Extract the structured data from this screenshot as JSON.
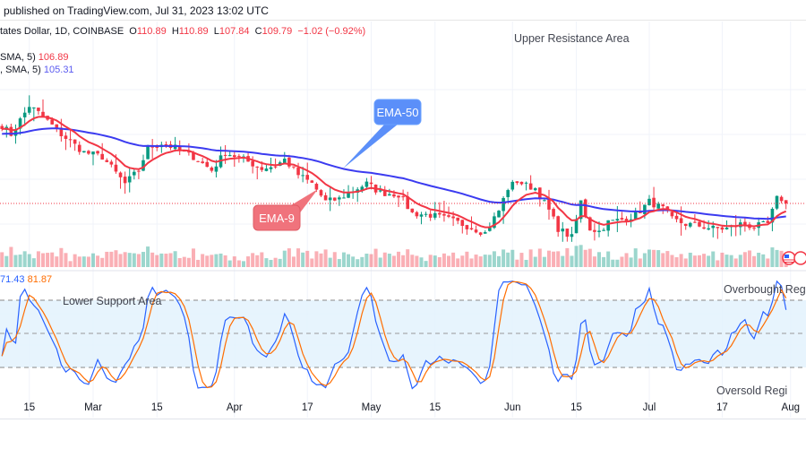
{
  "header": {
    "published": "published on TradingView.com, Jul 31, 2023 13:02 UTC"
  },
  "legend": {
    "symbol": "tates Dollar, 1D, COINBASE",
    "open_label": "O",
    "open": "110.89",
    "high_label": "H",
    "high": "110.89",
    "low_label": "L",
    "low": "107.84",
    "close_label": "C",
    "close": "109.79",
    "change": "−1.02 (−0.92%)",
    "ema_fast_label": "SMA, 5)",
    "ema_fast_value": "106.89",
    "ema_slow_label": ", SMA, 5)",
    "ema_slow_value": "105.31"
  },
  "oscillator_legend": {
    "k_value": "71.43",
    "d_value": "81.87"
  },
  "annotations": {
    "upper_resistance": "Upper Resistance Area",
    "lower_support": "Lower Support Area",
    "ema50": "EMA-50",
    "ema9": "EMA-9",
    "overbought": "Overbought Regi",
    "oversold": "Oversold Regi"
  },
  "colors": {
    "up": "#089981",
    "down": "#f23645",
    "ema9": "#f23645",
    "ema50": "#3b3bf0",
    "k_line": "#2962ff",
    "d_line": "#ff6d00",
    "band": "#e3f2fd",
    "ema50_callout": "#5b8ff9",
    "ema9_callout": "#f0737c"
  },
  "chart_data": {
    "type": "candlestick",
    "interval": "1D",
    "exchange": "COINBASE",
    "x_ticks": [
      "15",
      "Mar",
      "15",
      "Apr",
      "17",
      "May",
      "15",
      "Jun",
      "15",
      "Jul",
      "17",
      "Aug"
    ],
    "x_tick_dates": [
      "2023-02-15",
      "2023-03-01",
      "2023-03-15",
      "2023-04-01",
      "2023-04-17",
      "2023-05-01",
      "2023-05-15",
      "2023-06-01",
      "2023-06-15",
      "2023-07-01",
      "2023-07-17",
      "2023-08-01"
    ],
    "close_waypoints": [
      [
        "2023-02-09",
        135.9
      ],
      [
        "2023-02-11",
        132.9
      ],
      [
        "2023-02-15",
        142.5
      ],
      [
        "2023-02-18",
        138.9
      ],
      [
        "2023-02-22",
        132.9
      ],
      [
        "2023-02-27",
        126.9
      ],
      [
        "2023-03-03",
        125.4
      ],
      [
        "2023-03-08",
        116.4
      ],
      [
        "2023-03-11",
        120.9
      ],
      [
        "2023-03-13",
        128.4
      ],
      [
        "2023-03-16",
        129.9
      ],
      [
        "2023-03-19",
        128.4
      ],
      [
        "2023-03-21",
        126.9
      ],
      [
        "2023-03-23",
        125.4
      ],
      [
        "2023-03-27",
        120.9
      ],
      [
        "2023-03-30",
        126.9
      ],
      [
        "2023-04-03",
        124.5
      ],
      [
        "2023-04-07",
        121.5
      ],
      [
        "2023-04-10",
        122.4
      ],
      [
        "2023-04-12",
        124.5
      ],
      [
        "2023-04-15",
        119.4
      ],
      [
        "2023-04-18",
        116.4
      ],
      [
        "2023-04-21",
        110.4
      ],
      [
        "2023-04-24",
        111.3
      ],
      [
        "2023-04-26",
        113.4
      ],
      [
        "2023-04-30",
        116.4
      ],
      [
        "2023-05-03",
        113.4
      ],
      [
        "2023-05-07",
        112.8
      ],
      [
        "2023-05-10",
        106.5
      ],
      [
        "2023-05-14",
        105.9
      ],
      [
        "2023-05-18",
        104.4
      ],
      [
        "2023-05-22",
        102.3
      ],
      [
        "2023-05-26",
        99.9
      ],
      [
        "2023-05-29",
        107.4
      ],
      [
        "2023-05-31",
        114.9
      ],
      [
        "2023-06-02",
        117.3
      ],
      [
        "2023-06-04",
        115.8
      ],
      [
        "2023-06-06",
        114.9
      ],
      [
        "2023-06-09",
        107.4
      ],
      [
        "2023-06-11",
        101.4
      ],
      [
        "2023-06-14",
        98.4
      ],
      [
        "2023-06-16",
        110.4
      ],
      [
        "2023-06-18",
        101.4
      ],
      [
        "2023-06-20",
        100.5
      ],
      [
        "2023-06-22",
        103.5
      ],
      [
        "2023-06-25",
        104.4
      ],
      [
        "2023-06-28",
        105.9
      ],
      [
        "2023-07-01",
        110.4
      ],
      [
        "2023-07-04",
        108.0
      ],
      [
        "2023-07-06",
        104.4
      ],
      [
        "2023-07-09",
        102.9
      ],
      [
        "2023-07-12",
        102.3
      ],
      [
        "2023-07-15",
        101.4
      ],
      [
        "2023-07-18",
        101.4
      ],
      [
        "2023-07-21",
        102.9
      ],
      [
        "2023-07-24",
        102.0
      ],
      [
        "2023-07-27",
        102.9
      ],
      [
        "2023-07-29",
        111.3
      ],
      [
        "2023-07-30",
        111.3
      ],
      [
        "2023-07-31",
        109.79
      ]
    ],
    "last_bar": {
      "open": 110.89,
      "high": 110.89,
      "low": 107.84,
      "close": 109.79
    },
    "ema9_last": 106.89,
    "ema50_last": 105.31,
    "oscillator": {
      "levels": [
        80,
        50,
        20
      ],
      "k_last": 71.43,
      "d_last": 81.87,
      "range": [
        0,
        100
      ]
    }
  }
}
